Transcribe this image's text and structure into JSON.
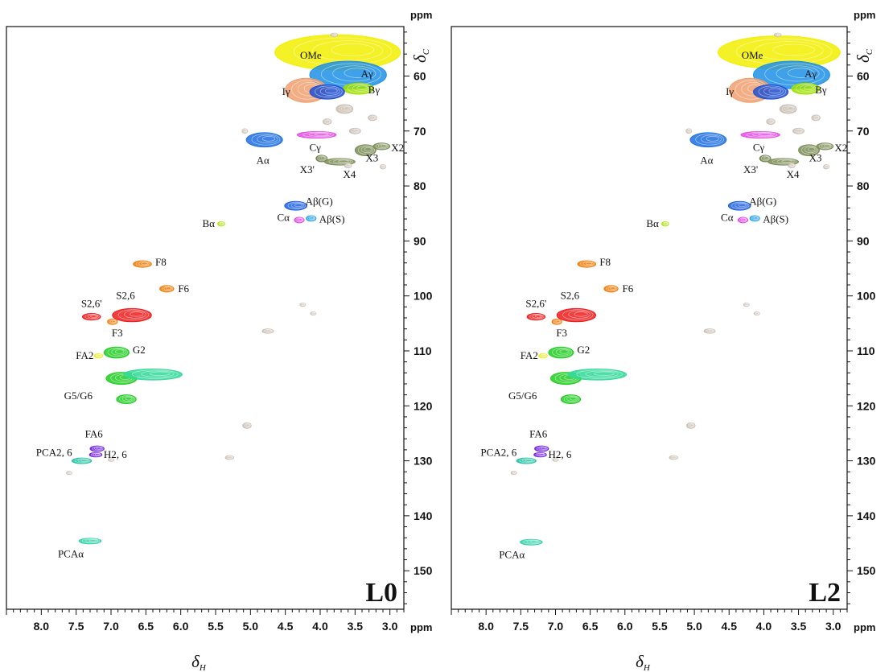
{
  "chart_data": [
    {
      "type": "scatter",
      "panel_label": "L0",
      "xlabel": "δH",
      "ylabel": "δC",
      "x_unit": "ppm",
      "y_unit": "ppm",
      "xlim": [
        8.5,
        2.8
      ],
      "ylim": [
        51,
        157
      ],
      "x_reversed": true,
      "y_reversed": true,
      "x_ticks": [
        "8.0",
        "7.5",
        "7.0",
        "6.5",
        "6.0",
        "5.5",
        "5.0",
        "4.5",
        "4.0",
        "3.5",
        "3.0"
      ],
      "y_ticks": [
        "60",
        "70",
        "80",
        "90",
        "100",
        "110",
        "120",
        "130",
        "140",
        "150"
      ],
      "grid": false,
      "peaks": [
        {
          "label": "OMe",
          "x": 3.75,
          "y": 55.7,
          "color": "#f2ee00",
          "sx": 0.9,
          "sy": 3.2
        },
        {
          "label": "Aγ",
          "x": 3.6,
          "y": 59.8,
          "color": "#1e90e8",
          "sx": 0.55,
          "sy": 2.5
        },
        {
          "label": "Iγ",
          "x": 4.2,
          "y": 62.6,
          "color": "#f0a070",
          "sx": 0.3,
          "sy": 2.2
        },
        {
          "label": "Bγ",
          "x": 3.45,
          "y": 62.3,
          "color": "#9fe000",
          "sx": 0.22,
          "sy": 1.0
        },
        {
          "label": "",
          "x": 3.9,
          "y": 62.9,
          "color": "#2050d0",
          "sx": 0.25,
          "sy": 1.3
        },
        {
          "label": "Cγ",
          "x": 4.05,
          "y": 70.7,
          "color": "#e050e0",
          "sx": 0.28,
          "sy": 0.6
        },
        {
          "label": "Aα",
          "x": 4.8,
          "y": 71.6,
          "color": "#1e70e0",
          "sx": 0.26,
          "sy": 1.3
        },
        {
          "label": "X3'",
          "x": 3.98,
          "y": 75.0,
          "color": "#6f7f4a",
          "sx": 0.08,
          "sy": 0.6
        },
        {
          "label": "X4",
          "x": 3.72,
          "y": 75.6,
          "color": "#7a8c55",
          "sx": 0.22,
          "sy": 0.6
        },
        {
          "label": "X3",
          "x": 3.35,
          "y": 73.5,
          "color": "#7a8c55",
          "sx": 0.15,
          "sy": 1.0
        },
        {
          "label": "X2",
          "x": 3.12,
          "y": 72.8,
          "color": "#7a8c55",
          "sx": 0.12,
          "sy": 0.6
        },
        {
          "label": "Aβ(G)",
          "x": 4.35,
          "y": 83.6,
          "color": "#1e60e0",
          "sx": 0.16,
          "sy": 0.8
        },
        {
          "label": "Cα",
          "x": 4.3,
          "y": 86.2,
          "color": "#e040e0",
          "sx": 0.07,
          "sy": 0.5
        },
        {
          "label": "Aβ(S)",
          "x": 4.13,
          "y": 85.9,
          "color": "#1ea0e8",
          "sx": 0.07,
          "sy": 0.5
        },
        {
          "label": "Bα",
          "x": 5.42,
          "y": 86.9,
          "color": "#a8e000",
          "sx": 0.05,
          "sy": 0.4
        },
        {
          "label": "F8",
          "x": 6.55,
          "y": 94.2,
          "color": "#f07800",
          "sx": 0.13,
          "sy": 0.6
        },
        {
          "label": "F6",
          "x": 6.2,
          "y": 98.7,
          "color": "#f07800",
          "sx": 0.1,
          "sy": 0.6
        },
        {
          "label": "S2,6'",
          "x": 7.28,
          "y": 103.8,
          "color": "#ee1c1c",
          "sx": 0.13,
          "sy": 0.6
        },
        {
          "label": "S2,6",
          "x": 6.7,
          "y": 103.5,
          "color": "#ee1c1c",
          "sx": 0.28,
          "sy": 1.2
        },
        {
          "label": "F3",
          "x": 6.98,
          "y": 104.7,
          "color": "#f07800",
          "sx": 0.07,
          "sy": 0.5
        },
        {
          "label": "FA2",
          "x": 7.18,
          "y": 110.9,
          "color": "#e8ec20",
          "sx": 0.06,
          "sy": 0.4
        },
        {
          "label": "G2",
          "x": 6.92,
          "y": 110.3,
          "color": "#22cc22",
          "sx": 0.18,
          "sy": 1.0
        },
        {
          "label": "G5/G6",
          "x": 6.85,
          "y": 115.0,
          "color": "#22cc22",
          "sx": 0.22,
          "sy": 1.1
        },
        {
          "label": "",
          "x": 6.4,
          "y": 114.3,
          "color": "#30d898",
          "sx": 0.42,
          "sy": 1.0
        },
        {
          "label": "",
          "x": 6.78,
          "y": 118.8,
          "color": "#22cc22",
          "sx": 0.14,
          "sy": 0.8
        },
        {
          "label": "FA6",
          "x": 7.2,
          "y": 127.8,
          "color": "#7020e0",
          "sx": 0.1,
          "sy": 0.5
        },
        {
          "label": "H2, 6",
          "x": 7.22,
          "y": 128.9,
          "color": "#7020e0",
          "sx": 0.09,
          "sy": 0.4
        },
        {
          "label": "PCA2, 6",
          "x": 7.42,
          "y": 130.0,
          "color": "#20c0a0",
          "sx": 0.14,
          "sy": 0.5
        },
        {
          "label": "PCAα",
          "x": 7.3,
          "y": 144.6,
          "color": "#30d0a8",
          "sx": 0.16,
          "sy": 0.5
        },
        {
          "label": "",
          "x": 4.75,
          "y": 106.4,
          "color": "#c8bcb0",
          "sx": 0.08,
          "sy": 0.4
        },
        {
          "label": "",
          "x": 5.05,
          "y": 123.6,
          "color": "#c8bcb0",
          "sx": 0.06,
          "sy": 0.5
        },
        {
          "label": "",
          "x": 5.3,
          "y": 129.4,
          "color": "#c8bcb0",
          "sx": 0.06,
          "sy": 0.35
        },
        {
          "label": "",
          "x": 7.6,
          "y": 132.2,
          "color": "#c8bcb0",
          "sx": 0.04,
          "sy": 0.3
        },
        {
          "label": "",
          "x": 7.0,
          "y": 129.8,
          "color": "#c8bcb0",
          "sx": 0.04,
          "sy": 0.3
        },
        {
          "label": "",
          "x": 5.08,
          "y": 70.0,
          "color": "#c8bcb0",
          "sx": 0.04,
          "sy": 0.4
        },
        {
          "label": "",
          "x": 4.25,
          "y": 101.6,
          "color": "#c8bcb0",
          "sx": 0.04,
          "sy": 0.25
        },
        {
          "label": "",
          "x": 4.1,
          "y": 103.2,
          "color": "#c8bcb0",
          "sx": 0.04,
          "sy": 0.25
        },
        {
          "label": "",
          "x": 3.8,
          "y": 52.5,
          "color": "#c8bcb0",
          "sx": 0.05,
          "sy": 0.3
        },
        {
          "label": "",
          "x": 3.65,
          "y": 66.0,
          "color": "#c8bcb0",
          "sx": 0.12,
          "sy": 0.8
        },
        {
          "label": "",
          "x": 3.9,
          "y": 68.3,
          "color": "#c8bcb0",
          "sx": 0.06,
          "sy": 0.5
        },
        {
          "label": "",
          "x": 3.5,
          "y": 70.0,
          "color": "#c8bcb0",
          "sx": 0.08,
          "sy": 0.5
        },
        {
          "label": "",
          "x": 3.25,
          "y": 67.6,
          "color": "#c8bcb0",
          "sx": 0.06,
          "sy": 0.5
        },
        {
          "label": "",
          "x": 3.6,
          "y": 76.3,
          "color": "#c8bcb0",
          "sx": 0.05,
          "sy": 0.4
        },
        {
          "label": "",
          "x": 3.1,
          "y": 76.5,
          "color": "#c8bcb0",
          "sx": 0.04,
          "sy": 0.4
        }
      ]
    },
    {
      "type": "scatter",
      "panel_label": "L2",
      "xlabel": "δH",
      "ylabel": "δC",
      "x_unit": "ppm",
      "y_unit": "ppm",
      "xlim": [
        8.5,
        2.8
      ],
      "ylim": [
        51,
        157
      ],
      "x_reversed": true,
      "y_reversed": true,
      "x_ticks": [
        "8.0",
        "7.5",
        "7.0",
        "6.5",
        "6.0",
        "5.5",
        "5.0",
        "4.5",
        "4.0",
        "3.5",
        "3.0"
      ],
      "y_ticks": [
        "60",
        "70",
        "80",
        "90",
        "100",
        "110",
        "120",
        "130",
        "140",
        "150"
      ],
      "grid": false,
      "peaks": [
        {
          "label": "OMe",
          "x": 3.78,
          "y": 55.7,
          "color": "#f2ee00",
          "sx": 0.88,
          "sy": 3.0
        },
        {
          "label": "Aγ",
          "x": 3.6,
          "y": 59.8,
          "color": "#1e90e8",
          "sx": 0.55,
          "sy": 2.5
        },
        {
          "label": "Iγ",
          "x": 4.2,
          "y": 62.6,
          "color": "#f0a070",
          "sx": 0.3,
          "sy": 2.2
        },
        {
          "label": "Bγ",
          "x": 3.4,
          "y": 62.3,
          "color": "#9fe000",
          "sx": 0.2,
          "sy": 1.0
        },
        {
          "label": "",
          "x": 3.9,
          "y": 62.9,
          "color": "#2050d0",
          "sx": 0.25,
          "sy": 1.3
        },
        {
          "label": "Cγ",
          "x": 4.05,
          "y": 70.7,
          "color": "#e050e0",
          "sx": 0.28,
          "sy": 0.6
        },
        {
          "label": "Aα",
          "x": 4.8,
          "y": 71.6,
          "color": "#1e70e0",
          "sx": 0.26,
          "sy": 1.3
        },
        {
          "label": "X3'",
          "x": 3.98,
          "y": 75.0,
          "color": "#6f7f4a",
          "sx": 0.08,
          "sy": 0.6
        },
        {
          "label": "X4",
          "x": 3.72,
          "y": 75.6,
          "color": "#7a8c55",
          "sx": 0.22,
          "sy": 0.6
        },
        {
          "label": "X3",
          "x": 3.35,
          "y": 73.5,
          "color": "#7a8c55",
          "sx": 0.15,
          "sy": 1.0
        },
        {
          "label": "X2",
          "x": 3.12,
          "y": 72.8,
          "color": "#7a8c55",
          "sx": 0.12,
          "sy": 0.6
        },
        {
          "label": "Aβ(G)",
          "x": 4.35,
          "y": 83.6,
          "color": "#1e60e0",
          "sx": 0.16,
          "sy": 0.8
        },
        {
          "label": "Cα",
          "x": 4.3,
          "y": 86.2,
          "color": "#e040e0",
          "sx": 0.07,
          "sy": 0.5
        },
        {
          "label": "Aβ(S)",
          "x": 4.13,
          "y": 85.9,
          "color": "#1ea0e8",
          "sx": 0.07,
          "sy": 0.5
        },
        {
          "label": "Bα",
          "x": 5.42,
          "y": 86.9,
          "color": "#a8e000",
          "sx": 0.05,
          "sy": 0.4
        },
        {
          "label": "F8",
          "x": 6.55,
          "y": 94.2,
          "color": "#f07800",
          "sx": 0.13,
          "sy": 0.6
        },
        {
          "label": "F6",
          "x": 6.2,
          "y": 98.7,
          "color": "#f07800",
          "sx": 0.1,
          "sy": 0.6
        },
        {
          "label": "S2,6'",
          "x": 7.28,
          "y": 103.8,
          "color": "#ee1c1c",
          "sx": 0.13,
          "sy": 0.6
        },
        {
          "label": "S2,6",
          "x": 6.7,
          "y": 103.5,
          "color": "#ee1c1c",
          "sx": 0.28,
          "sy": 1.2
        },
        {
          "label": "F3",
          "x": 6.98,
          "y": 104.7,
          "color": "#f07800",
          "sx": 0.07,
          "sy": 0.5
        },
        {
          "label": "FA2",
          "x": 7.18,
          "y": 110.9,
          "color": "#e8ec20",
          "sx": 0.06,
          "sy": 0.4
        },
        {
          "label": "G2",
          "x": 6.92,
          "y": 110.3,
          "color": "#22cc22",
          "sx": 0.18,
          "sy": 1.0
        },
        {
          "label": "G5/G6",
          "x": 6.85,
          "y": 115.0,
          "color": "#22cc22",
          "sx": 0.22,
          "sy": 1.1
        },
        {
          "label": "",
          "x": 6.4,
          "y": 114.3,
          "color": "#30d898",
          "sx": 0.42,
          "sy": 1.0
        },
        {
          "label": "",
          "x": 6.78,
          "y": 118.8,
          "color": "#22cc22",
          "sx": 0.14,
          "sy": 0.8
        },
        {
          "label": "FA6",
          "x": 7.2,
          "y": 127.8,
          "color": "#7020e0",
          "sx": 0.1,
          "sy": 0.5
        },
        {
          "label": "H2, 6",
          "x": 7.22,
          "y": 128.9,
          "color": "#7020e0",
          "sx": 0.09,
          "sy": 0.4
        },
        {
          "label": "PCA2, 6",
          "x": 7.42,
          "y": 130.0,
          "color": "#20c0a0",
          "sx": 0.14,
          "sy": 0.5
        },
        {
          "label": "PCAα",
          "x": 7.35,
          "y": 144.8,
          "color": "#30d0a8",
          "sx": 0.16,
          "sy": 0.5
        },
        {
          "label": "",
          "x": 4.78,
          "y": 106.4,
          "color": "#c8bcb0",
          "sx": 0.08,
          "sy": 0.4
        },
        {
          "label": "",
          "x": 5.05,
          "y": 123.6,
          "color": "#c8bcb0",
          "sx": 0.06,
          "sy": 0.5
        },
        {
          "label": "",
          "x": 5.3,
          "y": 129.4,
          "color": "#c8bcb0",
          "sx": 0.06,
          "sy": 0.35
        },
        {
          "label": "",
          "x": 7.6,
          "y": 132.2,
          "color": "#c8bcb0",
          "sx": 0.04,
          "sy": 0.3
        },
        {
          "label": "",
          "x": 7.0,
          "y": 129.8,
          "color": "#c8bcb0",
          "sx": 0.04,
          "sy": 0.3
        },
        {
          "label": "",
          "x": 5.08,
          "y": 70.0,
          "color": "#c8bcb0",
          "sx": 0.04,
          "sy": 0.4
        },
        {
          "label": "",
          "x": 4.25,
          "y": 101.6,
          "color": "#c8bcb0",
          "sx": 0.04,
          "sy": 0.25
        },
        {
          "label": "",
          "x": 4.1,
          "y": 103.2,
          "color": "#c8bcb0",
          "sx": 0.04,
          "sy": 0.25
        },
        {
          "label": "",
          "x": 3.8,
          "y": 52.5,
          "color": "#c8bcb0",
          "sx": 0.05,
          "sy": 0.3
        },
        {
          "label": "",
          "x": 3.65,
          "y": 66.0,
          "color": "#c8bcb0",
          "sx": 0.12,
          "sy": 0.8
        },
        {
          "label": "",
          "x": 3.9,
          "y": 68.3,
          "color": "#c8bcb0",
          "sx": 0.06,
          "sy": 0.5
        },
        {
          "label": "",
          "x": 3.5,
          "y": 70.0,
          "color": "#c8bcb0",
          "sx": 0.08,
          "sy": 0.5
        },
        {
          "label": "",
          "x": 3.25,
          "y": 67.6,
          "color": "#c8bcb0",
          "sx": 0.06,
          "sy": 0.5
        },
        {
          "label": "",
          "x": 3.6,
          "y": 76.3,
          "color": "#c8bcb0",
          "sx": 0.05,
          "sy": 0.4
        },
        {
          "label": "",
          "x": 3.1,
          "y": 76.5,
          "color": "#c8bcb0",
          "sx": 0.04,
          "sy": 0.4
        }
      ]
    }
  ]
}
